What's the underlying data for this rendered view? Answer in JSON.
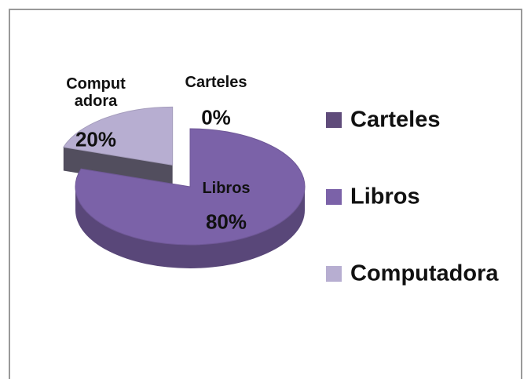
{
  "chart_data": {
    "type": "pie",
    "categories": [
      "Carteles",
      "Libros",
      "Computadora"
    ],
    "values": [
      0,
      80,
      20
    ],
    "value_labels": [
      "0%",
      "80%",
      "20%"
    ],
    "colors": [
      "#5f4b7a",
      "#7b62a8",
      "#b7aed1"
    ],
    "legend": "right"
  }
}
